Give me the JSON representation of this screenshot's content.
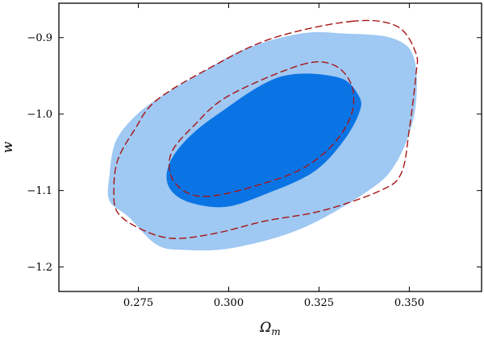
{
  "chart_data": {
    "type": "contour",
    "title": "",
    "xlabel": "Ω",
    "xlabel_sub": "m",
    "ylabel": "w",
    "xlim": [
      0.253,
      0.37
    ],
    "ylim": [
      -1.232,
      -0.855
    ],
    "xticks": [
      0.275,
      0.3,
      0.325,
      0.35
    ],
    "xtick_labels": [
      "0.275",
      "0.300",
      "0.325",
      "0.350"
    ],
    "yticks": [
      -0.9,
      -1.0,
      -1.1,
      -1.2
    ],
    "ytick_labels": [
      "−0.9",
      "−1.0",
      "−1.1",
      "−1.2"
    ],
    "grid": false,
    "legend": "none",
    "regions": [
      {
        "style": "filled",
        "color": "#9fc8f2",
        "points": [
          [
            0.32,
            -0.8946
          ],
          [
            0.332,
            -0.8946
          ],
          [
            0.3455,
            -0.901
          ],
          [
            0.3514,
            -0.9285
          ],
          [
            0.3514,
            -1.0
          ],
          [
            0.346,
            -1.0665
          ],
          [
            0.3378,
            -1.1029
          ],
          [
            0.32,
            -1.15
          ],
          [
            0.301,
            -1.1751
          ],
          [
            0.287,
            -1.1776
          ],
          [
            0.2798,
            -1.17
          ],
          [
            0.2723,
            -1.1345
          ],
          [
            0.267,
            -1.1135
          ],
          [
            0.267,
            -1.08
          ],
          [
            0.2688,
            -1.035
          ],
          [
            0.2747,
            -1.0
          ],
          [
            0.2826,
            -0.9729
          ],
          [
            0.2904,
            -0.9517
          ],
          [
            0.3042,
            -0.9154
          ],
          [
            0.32,
            -0.8946
          ]
        ]
      },
      {
        "style": "filled",
        "color": "#0a74e4",
        "points": [
          [
            0.314,
            -0.9517
          ],
          [
            0.33,
            -0.9517
          ],
          [
            0.336,
            -0.976
          ],
          [
            0.336,
            -1.0
          ],
          [
            0.331,
            -1.04
          ],
          [
            0.323,
            -1.0772
          ],
          [
            0.31,
            -1.105
          ],
          [
            0.299,
            -1.1214
          ],
          [
            0.2886,
            -1.1146
          ],
          [
            0.2834,
            -1.095
          ],
          [
            0.2834,
            -1.0669
          ],
          [
            0.288,
            -1.035
          ],
          [
            0.297,
            -1.0
          ],
          [
            0.314,
            -0.9517
          ]
        ]
      },
      {
        "style": "dashed",
        "color": "#a81414",
        "points": [
          [
            0.334,
            -0.8787
          ],
          [
            0.3465,
            -0.885
          ],
          [
            0.3518,
            -0.92
          ],
          [
            0.3518,
            -0.95
          ],
          [
            0.35,
            -1.02
          ],
          [
            0.3478,
            -1.077
          ],
          [
            0.342,
            -1.1
          ],
          [
            0.326,
            -1.1262
          ],
          [
            0.31,
            -1.14
          ],
          [
            0.296,
            -1.1563
          ],
          [
            0.2843,
            -1.1625
          ],
          [
            0.2755,
            -1.15
          ],
          [
            0.2693,
            -1.129
          ],
          [
            0.2682,
            -1.1
          ],
          [
            0.2693,
            -1.06
          ],
          [
            0.274,
            -1.02
          ],
          [
            0.28,
            -0.982
          ],
          [
            0.295,
            -0.939
          ],
          [
            0.312,
            -0.901
          ],
          [
            0.334,
            -0.8787
          ]
        ]
      },
      {
        "style": "dashed",
        "color": "#a81414",
        "points": [
          [
            0.32,
            -0.9357
          ],
          [
            0.329,
            -0.9357
          ],
          [
            0.334,
            -0.962
          ],
          [
            0.334,
            -1.0
          ],
          [
            0.3288,
            -1.04
          ],
          [
            0.32,
            -1.0722
          ],
          [
            0.308,
            -1.0931
          ],
          [
            0.296,
            -1.1067
          ],
          [
            0.289,
            -1.1039
          ],
          [
            0.2842,
            -1.0827
          ],
          [
            0.2842,
            -1.05
          ],
          [
            0.2904,
            -1.015
          ],
          [
            0.3,
            -0.976
          ],
          [
            0.32,
            -0.9357
          ]
        ]
      }
    ]
  }
}
